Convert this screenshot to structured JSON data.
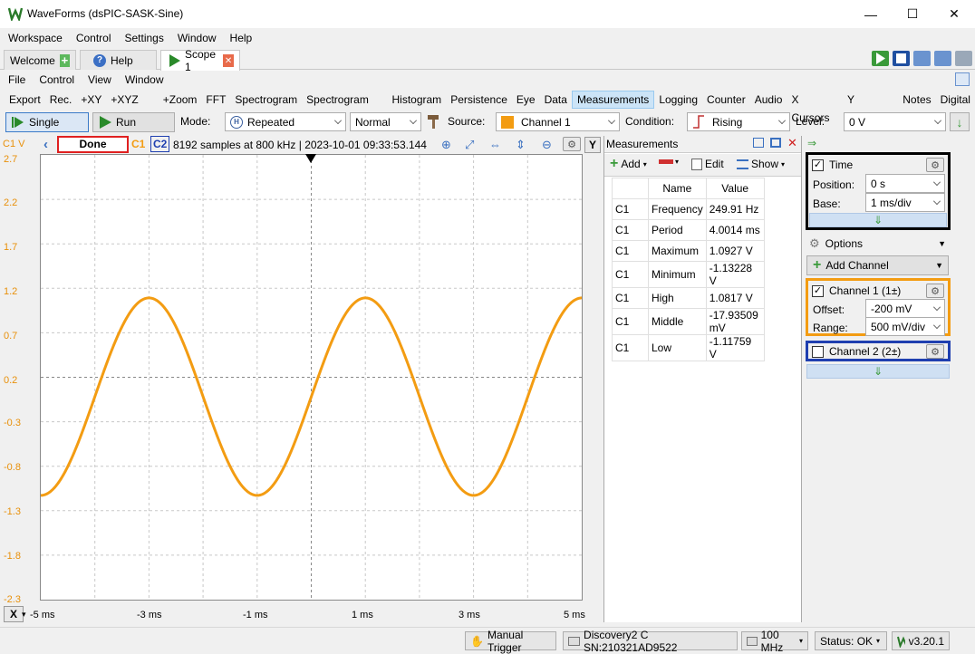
{
  "window": {
    "title": "WaveForms (dsPIC-SASK-Sine)",
    "minimize": "—",
    "maximize": "☐",
    "close": "✕"
  },
  "menu_main": [
    {
      "label": "Workspace"
    },
    {
      "label": "Control"
    },
    {
      "label": "Settings"
    },
    {
      "label": "Window"
    },
    {
      "label": "Help"
    }
  ],
  "tabs": [
    {
      "label": "Welcome"
    },
    {
      "label": "Help"
    },
    {
      "label": "Scope 1"
    }
  ],
  "menu_scope": [
    {
      "label": "File"
    },
    {
      "label": "Control"
    },
    {
      "label": "View"
    },
    {
      "label": "Window"
    }
  ],
  "instruments": [
    "Export",
    "Rec.",
    "+XY",
    "+XYZ 3D",
    "+Zoom",
    "FFT",
    "Spectrogram",
    "Spectrogram 3D",
    "Histogram",
    "Persistence",
    "Eye",
    "Data",
    "Measurements",
    "Logging",
    "Counter",
    "Audio",
    "X Cursors",
    "Y Cursors",
    "Notes",
    "Digital"
  ],
  "controls": {
    "single": "Single",
    "run": "Run",
    "mode_label": "Mode:",
    "mode_value": "Repeated",
    "trigger_type": "Normal",
    "source_label": "Source:",
    "source_value": "Channel 1",
    "condition_label": "Condition:",
    "condition_value": "Rising",
    "level_label": "Level:",
    "level_value": "0 V"
  },
  "scope": {
    "channel_unit": "C1 V",
    "status": "Done",
    "c1": "C1",
    "c2": "C2",
    "info": "8192 samples at 800 kHz | 2023-10-01 09:33:53.144",
    "y_button": "Y",
    "x_button": "X",
    "y_ticks": [
      "2.7",
      "2.2",
      "1.7",
      "1.2",
      "0.7",
      "0.2",
      "-0.3",
      "-0.8",
      "-1.3",
      "-1.8",
      "-2.3"
    ],
    "x_ticks": [
      "-5 ms",
      "-3 ms",
      "-1 ms",
      "1 ms",
      "3 ms",
      "5 ms"
    ],
    "colors": {
      "c1": "#f39c12",
      "c2": "#1f3fb0",
      "grid": "#c8c8c8",
      "status_border": "#e02020"
    }
  },
  "chart_data": {
    "type": "line",
    "x_unit": "ms",
    "y_unit": "V",
    "xlim": [
      -5,
      5
    ],
    "ylim": [
      -2.3,
      2.7
    ],
    "grid": true,
    "series": [
      {
        "name": "C1",
        "frequency_hz": 249.91,
        "offset_v": -0.018,
        "amplitude_v": 1.11,
        "peak_times_ms": [
          -3,
          1
        ]
      }
    ]
  },
  "measurements": {
    "title": "Measurements",
    "add": "Add",
    "edit": "Edit",
    "show": "Show",
    "headers": [
      "Name",
      "Value"
    ],
    "rows": [
      {
        "ch": "C1",
        "name": "Frequency",
        "value": "249.91 Hz"
      },
      {
        "ch": "C1",
        "name": "Period",
        "value": "4.0014 ms"
      },
      {
        "ch": "C1",
        "name": "Maximum",
        "value": "1.0927 V"
      },
      {
        "ch": "C1",
        "name": "Minimum",
        "value": "-1.13228 V"
      },
      {
        "ch": "C1",
        "name": "High",
        "value": "1.0817 V"
      },
      {
        "ch": "C1",
        "name": "Middle",
        "value": "-17.93509 mV"
      },
      {
        "ch": "C1",
        "name": "Low",
        "value": "-1.11759 V"
      }
    ]
  },
  "time_panel": {
    "title": "Time",
    "position_label": "Position:",
    "position_value": "0 s",
    "base_label": "Base:",
    "base_value": "1 ms/div"
  },
  "options": {
    "label": "Options",
    "add_channel": "Add Channel"
  },
  "channel1": {
    "title": "Channel 1 (1±)",
    "offset_label": "Offset:",
    "offset_value": "-200 mV",
    "range_label": "Range:",
    "range_value": "500 mV/div"
  },
  "channel2": {
    "title": "Channel 2 (2±)"
  },
  "status": {
    "manual_trigger": "Manual Trigger",
    "device": "Discovery2 C SN:210321AD9522",
    "clock": "100 MHz",
    "status": "Status: OK",
    "version": "v3.20.1"
  }
}
